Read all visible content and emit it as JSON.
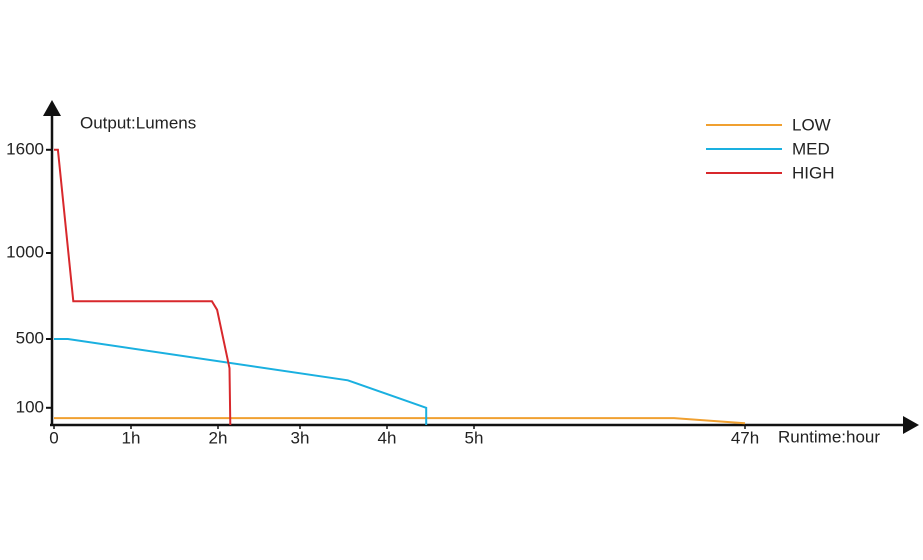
{
  "chart_data": {
    "type": "line",
    "title": "Output:Lumens",
    "x_label": "Runtime:hour",
    "xlim": [
      0,
      47
    ],
    "xticks": [
      0,
      {
        "value": 1,
        "label": "1h"
      },
      {
        "value": 2,
        "label": "2h"
      },
      {
        "value": 3,
        "label": "3h"
      },
      {
        "value": 4,
        "label": "4h"
      },
      {
        "value": 5,
        "label": "5h"
      },
      {
        "value": 47,
        "label": "47h"
      }
    ],
    "ylim": [
      0,
      1872
    ],
    "yticks": [
      100,
      500,
      1000,
      1600
    ],
    "legend": "top-right",
    "series": [
      {
        "name": "LOW",
        "color": "#f0a030",
        "x": [
          0,
          36,
          47
        ],
        "values": [
          40,
          40,
          10
        ]
      },
      {
        "name": "MED",
        "color": "#1ab0e0",
        "x": [
          0,
          0.18,
          3.55,
          4.45,
          4.45
        ],
        "values": [
          500,
          500,
          260,
          100,
          0
        ]
      },
      {
        "name": "HIGH",
        "color": "#d8282c",
        "x": [
          0,
          0.05,
          0.25,
          1.93,
          1.99,
          2.14,
          2.15
        ],
        "values": [
          1600,
          1600,
          720,
          720,
          670,
          330,
          0
        ]
      }
    ]
  }
}
